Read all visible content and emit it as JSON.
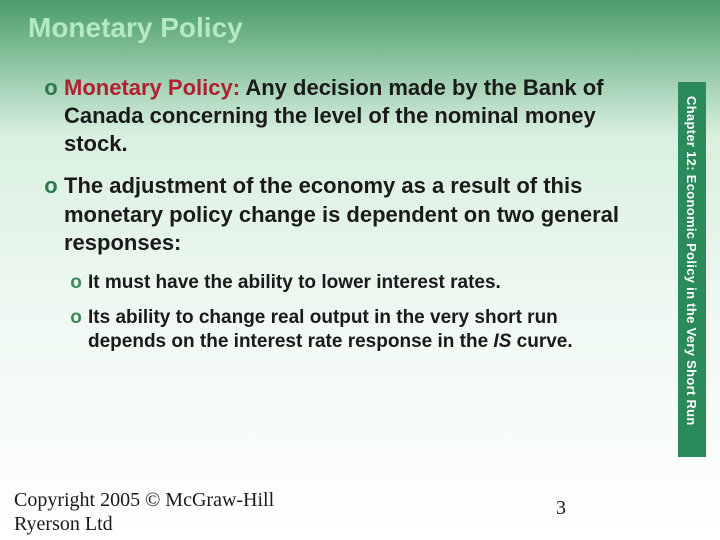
{
  "slide": {
    "title": "Monetary Policy"
  },
  "bullets": {
    "b1_term": "Monetary Policy:",
    "b1_rest": " Any decision made by the Bank of Canada concerning the level of the nominal money stock.",
    "b2": "The adjustment of the economy as a result of this monetary policy change is dependent on two general responses:",
    "b2a": "It must have the ability to lower interest rates.",
    "b2b_pre": "Its ability to change real output in the very short run depends on the interest rate response in the ",
    "b2b_is": "IS",
    "b2b_post": " curve."
  },
  "sidebar": {
    "text": "Chapter 12: Economic Policy in the Very Short Run"
  },
  "footer": {
    "copyright": "Copyright 2005 © McGraw-Hill",
    "copyright2": "Ryerson Ltd",
    "page": "3"
  },
  "markers": {
    "circle": "o"
  }
}
